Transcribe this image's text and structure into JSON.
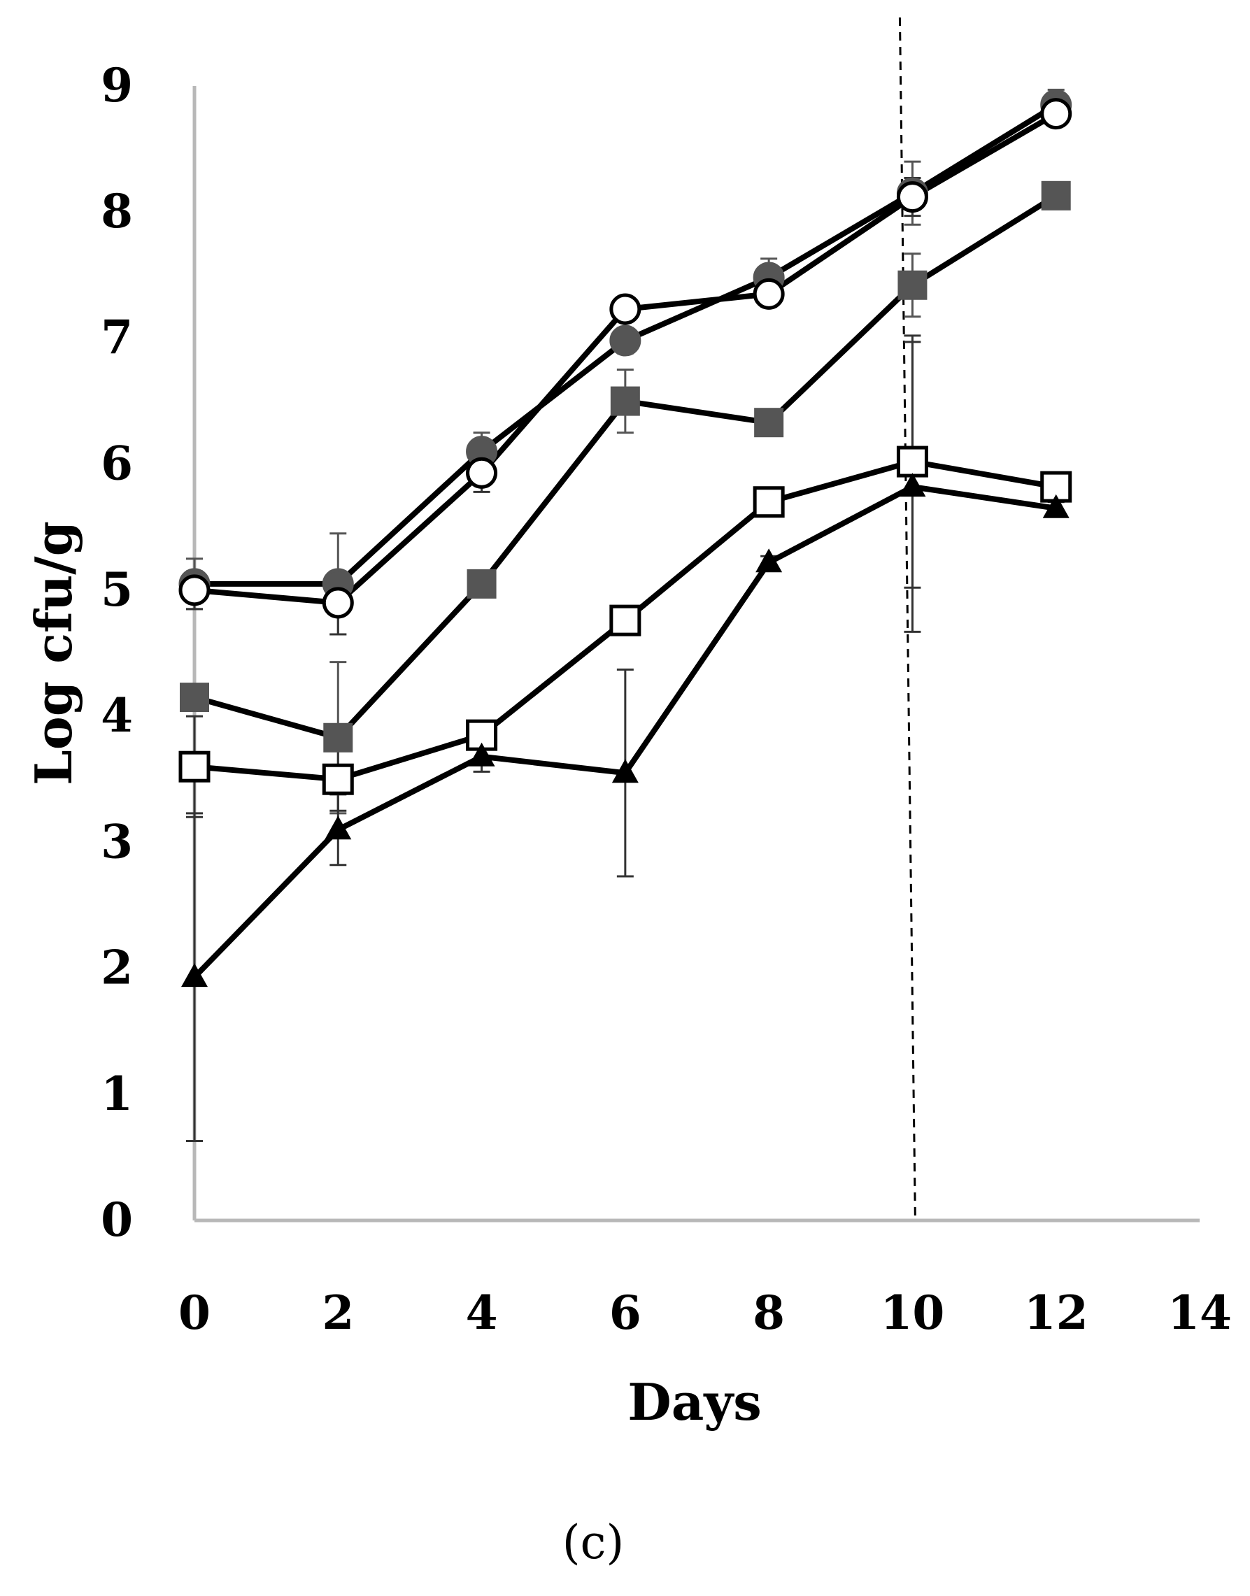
{
  "chart_data": {
    "type": "line",
    "title": "",
    "caption": "(c)",
    "xlabel": "Days",
    "ylabel": "Log cfu/g",
    "xlim": [
      0,
      14
    ],
    "ylim": [
      0,
      9
    ],
    "xticks": [
      0,
      2,
      4,
      6,
      8,
      10,
      12,
      14
    ],
    "yticks": [
      0,
      1,
      2,
      3,
      4,
      5,
      6,
      7,
      8,
      9
    ],
    "xtick_labels": [
      "0",
      "2",
      "4",
      "6",
      "8",
      "10",
      "12",
      "14"
    ],
    "ytick_labels": [
      "0",
      "1",
      "2",
      "3",
      "4",
      "5",
      "6",
      "7",
      "8",
      "9"
    ],
    "grid": false,
    "legend": "none",
    "vertical_reference_line": {
      "x": 10,
      "style": "dashed"
    },
    "series": [
      {
        "name": "filled-circle",
        "marker": "circle",
        "fill": "#555555",
        "x": [
          0,
          2,
          4,
          6,
          8,
          10,
          12
        ],
        "values": [
          5.05,
          5.05,
          6.1,
          6.98,
          7.48,
          8.15,
          8.85
        ],
        "errors": [
          0.2,
          0.4,
          0.15,
          0.1,
          0.15,
          0.25,
          0.12
        ]
      },
      {
        "name": "open-circle",
        "marker": "circle",
        "fill": "#ffffff",
        "x": [
          0,
          2,
          4,
          6,
          8,
          10,
          12
        ],
        "values": [
          5.0,
          4.9,
          5.93,
          7.23,
          7.35,
          8.12,
          8.78
        ],
        "errors": [
          0.15,
          0.25,
          0.15,
          0.05,
          0.1,
          0.15,
          0.05
        ]
      },
      {
        "name": "filled-square",
        "marker": "square",
        "fill": "#555555",
        "x": [
          0,
          2,
          4,
          6,
          8,
          10,
          12
        ],
        "values": [
          4.15,
          3.83,
          5.05,
          6.5,
          6.33,
          7.42,
          8.13
        ],
        "errors": [
          0.05,
          0.6,
          0.05,
          0.25,
          0.05,
          0.25,
          0.05
        ]
      },
      {
        "name": "open-square",
        "marker": "square",
        "fill": "#ffffff",
        "x": [
          0,
          2,
          4,
          6,
          8,
          10,
          12
        ],
        "values": [
          3.6,
          3.5,
          3.85,
          4.76,
          5.7,
          6.02,
          5.82
        ],
        "errors": [
          0.4,
          0.25,
          0.05,
          0.05,
          0.05,
          1.0,
          0.05
        ]
      },
      {
        "name": "filled-triangle",
        "marker": "triangle",
        "fill": "#000000",
        "x": [
          0,
          2,
          4,
          6,
          8,
          10,
          12
        ],
        "values": [
          1.93,
          3.1,
          3.68,
          3.55,
          5.22,
          5.82,
          5.65
        ],
        "errors": [
          1.3,
          0.28,
          0.12,
          0.82,
          0.05,
          1.15,
          0.05
        ]
      }
    ]
  }
}
